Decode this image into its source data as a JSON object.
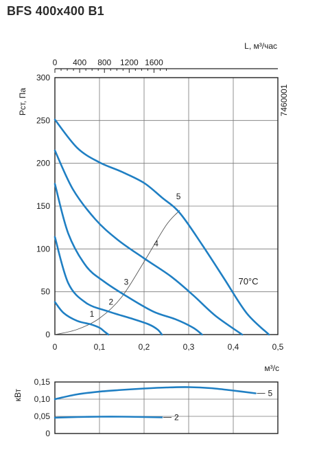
{
  "title": "BFS 400x400 B1",
  "chart_data": [
    {
      "type": "line",
      "xlabel": "м³/с",
      "ylabel": "Рст, Па",
      "x_top_label": "L, м³/час",
      "code": "7460001",
      "temperature_label": "70°C",
      "xlim": [
        0,
        0.5
      ],
      "ylim": [
        0,
        300
      ],
      "x_top_lim": [
        0,
        1800
      ],
      "x_ticks": [
        "0",
        "0,1",
        "0,2",
        "0,3",
        "0,4",
        "0,5"
      ],
      "y_ticks": [
        "0",
        "50",
        "100",
        "150",
        "200",
        "250",
        "300"
      ],
      "x_top_ticks": [
        "0",
        "400",
        "800",
        "1200",
        "1600"
      ],
      "grid": true,
      "series": [
        {
          "name": "1",
          "x": [
            0.0,
            0.02,
            0.05,
            0.08,
            0.1,
            0.11,
            0.12
          ],
          "y": [
            38,
            25,
            16,
            12,
            8,
            4,
            0
          ]
        },
        {
          "name": "2",
          "x": [
            0.0,
            0.03,
            0.07,
            0.12,
            0.17,
            0.21,
            0.23,
            0.24
          ],
          "y": [
            114,
            60,
            37,
            27,
            19,
            12,
            6,
            0
          ]
        },
        {
          "name": "3",
          "x": [
            0.0,
            0.03,
            0.07,
            0.11,
            0.16,
            0.22,
            0.27,
            0.31,
            0.33
          ],
          "y": [
            176,
            118,
            80,
            62,
            45,
            27,
            18,
            8,
            0
          ]
        },
        {
          "name": "4",
          "x": [
            0.0,
            0.04,
            0.09,
            0.14,
            0.2,
            0.26,
            0.31,
            0.36,
            0.42
          ],
          "y": [
            215,
            170,
            135,
            111,
            89,
            68,
            46,
            22,
            0
          ]
        },
        {
          "name": "5",
          "x": [
            0.0,
            0.05,
            0.1,
            0.15,
            0.2,
            0.24,
            0.28,
            0.33,
            0.38,
            0.43,
            0.48
          ],
          "y": [
            251,
            218,
            201,
            190,
            177,
            160,
            142,
            105,
            65,
            25,
            0
          ]
        }
      ],
      "system_curve": {
        "x": [
          0.0,
          0.05,
          0.1,
          0.15,
          0.2,
          0.25,
          0.28
        ],
        "y": [
          0,
          6,
          19,
          44,
          85,
          128,
          145
        ]
      },
      "curve_labels": [
        {
          "text": "1",
          "x": 0.083,
          "y": 21
        },
        {
          "text": "2",
          "x": 0.126,
          "y": 35
        },
        {
          "text": "3",
          "x": 0.16,
          "y": 58
        },
        {
          "text": "4",
          "x": 0.227,
          "y": 103
        },
        {
          "text": "5",
          "x": 0.277,
          "y": 158
        }
      ]
    },
    {
      "type": "line",
      "ylabel": "кВт",
      "xlim": [
        0,
        0.5
      ],
      "ylim": [
        0,
        0.15
      ],
      "y_ticks": [
        "0",
        "0,05",
        "0,10",
        "0,15"
      ],
      "grid": true,
      "series": [
        {
          "name": "5",
          "x": [
            0.0,
            0.05,
            0.1,
            0.15,
            0.2,
            0.25,
            0.3,
            0.35,
            0.4,
            0.45
          ],
          "y": [
            0.1,
            0.114,
            0.122,
            0.127,
            0.131,
            0.134,
            0.135,
            0.132,
            0.125,
            0.117
          ]
        },
        {
          "name": "2",
          "x": [
            0.0,
            0.05,
            0.1,
            0.15,
            0.2,
            0.24
          ],
          "y": [
            0.046,
            0.048,
            0.049,
            0.049,
            0.048,
            0.047
          ]
        }
      ]
    }
  ]
}
